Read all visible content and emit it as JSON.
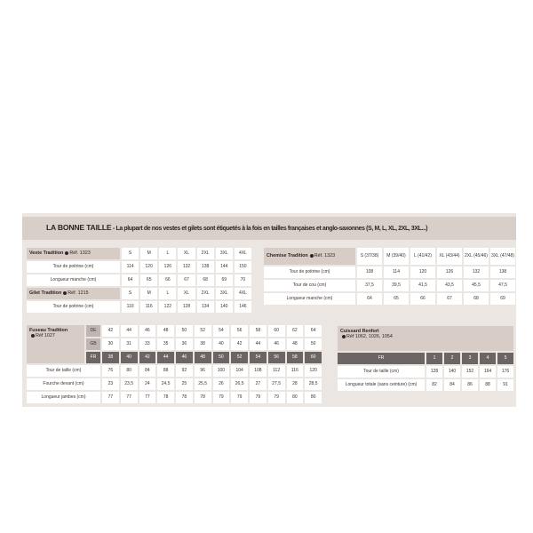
{
  "title": {
    "brand": "LA BONNE TAILLE",
    "subtitle": " - La plupart de nos vestes et gilets sont étiquetés à la fois en tailles françaises et anglo-saxonnes (S, M, L, XL, 2XL, 3XL...)"
  },
  "veste": {
    "name": "Veste Tradition",
    "ref": "Réf. 1323",
    "sizes": [
      "S",
      "M",
      "L",
      "XL",
      "2XL",
      "3XL",
      "4XL"
    ],
    "rows": [
      {
        "label": "Tour de poitrine (cm)",
        "values": [
          "114",
          "120",
          "126",
          "132",
          "138",
          "144",
          "150"
        ]
      },
      {
        "label": "Longueur manche (cm)",
        "values": [
          "64",
          "65",
          "66",
          "67",
          "68",
          "69",
          "70"
        ]
      }
    ]
  },
  "gilet": {
    "name": "Gilet Tradition",
    "ref": "Réf. 1215",
    "sizes": [
      "S",
      "M",
      "L",
      "XL",
      "2XL",
      "3XL",
      "4XL"
    ],
    "rows": [
      {
        "label": "Tour de poitrine (cm)",
        "values": [
          "110",
          "116",
          "122",
          "128",
          "134",
          "140",
          "146"
        ]
      }
    ]
  },
  "chemise": {
    "name": "Chemise Tradition",
    "ref": "Réf. 1323",
    "sizes": [
      "S (37/38)",
      "M (39/40)",
      "L (41/42)",
      "XL (43/44)",
      "2XL (45/46)",
      "3XL (47/48)"
    ],
    "rows": [
      {
        "label": "Tour de poitrine (cm)",
        "values": [
          "108",
          "114",
          "120",
          "126",
          "132",
          "138"
        ]
      },
      {
        "label": "Tour de cou (cm)",
        "values": [
          "37,5",
          "39,5",
          "41,5",
          "43,5",
          "45,5",
          "47,5"
        ]
      },
      {
        "label": "Longueur manche (cm)",
        "values": [
          "64",
          "65",
          "66",
          "67",
          "68",
          "69"
        ]
      }
    ]
  },
  "fuseau": {
    "name": "Fuseau Tradition",
    "ref": "Réf 1027",
    "codes": [
      {
        "code": "DE",
        "values": [
          "42",
          "44",
          "46",
          "48",
          "50",
          "52",
          "54",
          "56",
          "58",
          "60",
          "62",
          "64"
        ]
      },
      {
        "code": "GB",
        "values": [
          "30",
          "31",
          "33",
          "35",
          "36",
          "38",
          "40",
          "42",
          "44",
          "46",
          "48",
          "50"
        ]
      },
      {
        "code": "FR",
        "values": [
          "38",
          "40",
          "42",
          "44",
          "46",
          "48",
          "50",
          "52",
          "54",
          "56",
          "58",
          "60"
        ]
      }
    ],
    "rows": [
      {
        "label": "Tour de taille (cm)",
        "values": [
          "76",
          "80",
          "84",
          "88",
          "92",
          "96",
          "100",
          "104",
          "108",
          "112",
          "116",
          "120"
        ]
      },
      {
        "label": "Fourche devant (cm)",
        "values": [
          "23",
          "23,5",
          "24",
          "24,5",
          "25",
          "25,5",
          "26",
          "26,5",
          "27",
          "27,5",
          "28",
          "28,5"
        ]
      },
      {
        "label": "Longueur jambes (cm)",
        "values": [
          "77",
          "77",
          "77",
          "78",
          "78",
          "78",
          "79",
          "79",
          "79",
          "79",
          "80",
          "80"
        ]
      }
    ]
  },
  "cuissard": {
    "name": "Cuissard Renfort",
    "ref": "Réf 1062, 1026, 1054",
    "code": "FR",
    "sizes": [
      "1",
      "2",
      "3",
      "4",
      "5"
    ],
    "rows": [
      {
        "label": "Tour de taille (cm)",
        "values": [
          "128",
          "140",
          "152",
          "164",
          "176"
        ]
      },
      {
        "label": "Longueur totale (sans ceinture) (cm)",
        "values": [
          "82",
          "84",
          "86",
          "88",
          "91"
        ]
      }
    ]
  }
}
